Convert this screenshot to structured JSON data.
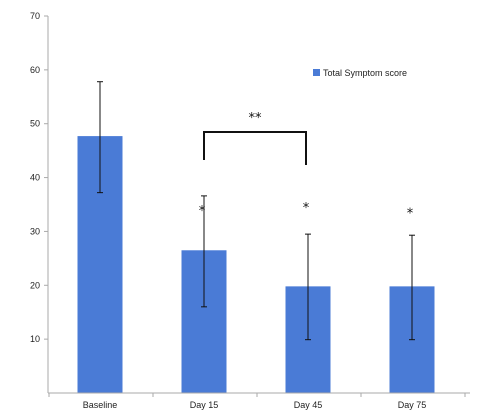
{
  "chart_data": {
    "type": "bar",
    "categories": [
      "Baseline",
      "Day 15",
      "Day 45",
      "Day 75"
    ],
    "series": [
      {
        "name": "Total Symptom score",
        "values": [
          47.7,
          26.5,
          19.8,
          19.8
        ],
        "error": [
          [
            37.2,
            57.8
          ],
          [
            16.0,
            36.6
          ],
          [
            9.9,
            29.5
          ],
          [
            9.9,
            29.3
          ]
        ],
        "color": "#4a7bd6"
      }
    ],
    "ylim": [
      0,
      70
    ],
    "yticks": [
      "10",
      "20",
      "30",
      "40",
      "50",
      "60",
      "70"
    ],
    "ytick_values": [
      10,
      20,
      30,
      40,
      50,
      60,
      70
    ],
    "legend": {
      "label": "Total Symptom score",
      "position": "top-right"
    },
    "annotations": {
      "stars": [
        {
          "category": "Day 15",
          "text": "*"
        },
        {
          "category": "Day 45",
          "text": "*"
        },
        {
          "category": "Day 75",
          "text": "*"
        }
      ],
      "bracket": {
        "from": "Day 15",
        "to": "Day 45",
        "text": "**"
      }
    },
    "title": "",
    "xlabel": "",
    "ylabel": "",
    "grid": false
  }
}
